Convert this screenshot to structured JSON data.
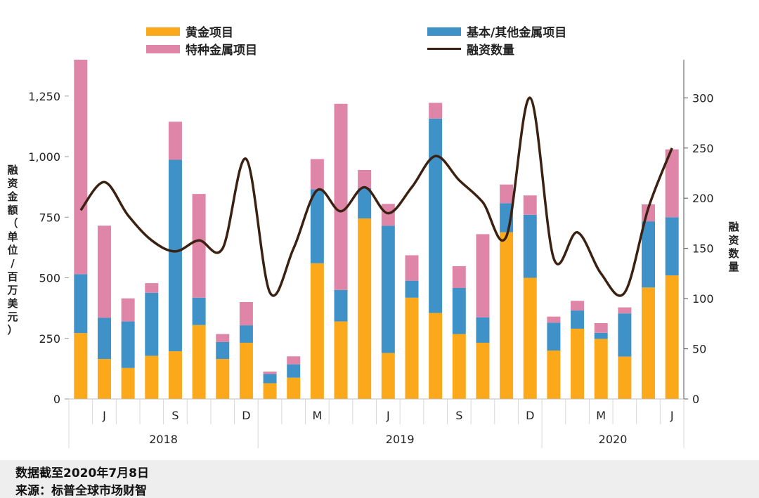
{
  "legend": {
    "gold": "黄金项目",
    "special": "特种金属项目",
    "base": "基本/其他金属项目",
    "count": "融资数量"
  },
  "left_axis_label": "融资金额（单位/百万美元）",
  "right_axis_label": "融资数量",
  "footer": {
    "date_note": "数据截至2020年7月8日",
    "source": "来源：标普全球市场财智"
  },
  "colors": {
    "gold": "#FBA81A",
    "base": "#3E92C8",
    "special": "#DF85A8",
    "count_line": "#3B2112"
  },
  "chart_data": {
    "type": "bar",
    "categories": [
      "2018-05",
      "2018-06",
      "2018-07",
      "2018-08",
      "2018-09",
      "2018-10",
      "2018-11",
      "2018-12",
      "2019-01",
      "2019-02",
      "2019-03",
      "2019-04",
      "2019-05",
      "2019-06",
      "2019-07",
      "2019-08",
      "2019-09",
      "2019-10",
      "2019-11",
      "2019-12",
      "2020-01",
      "2020-02",
      "2020-03",
      "2020-04",
      "2020-05",
      "2020-06"
    ],
    "tick_labels": [
      "",
      "J",
      "",
      "",
      "S",
      "",
      "",
      "D",
      "",
      "",
      "M",
      "",
      "",
      "J",
      "",
      "",
      "S",
      "",
      "",
      "D",
      "",
      "",
      "M",
      "",
      "",
      "J"
    ],
    "year_labels": [
      {
        "label": "2018",
        "first_index": 0,
        "last_index": 7
      },
      {
        "label": "2019",
        "first_index": 8,
        "last_index": 19
      },
      {
        "label": "2020",
        "first_index": 20,
        "last_index": 25
      }
    ],
    "stacked": true,
    "series": [
      {
        "name": "黄金项目",
        "color": "#FBA81A",
        "values": [
          272,
          165,
          128,
          178,
          197,
          305,
          165,
          232,
          65,
          88,
          560,
          320,
          745,
          190,
          418,
          355,
          268,
          232,
          688,
          500,
          200,
          290,
          248,
          175,
          460,
          510
        ]
      },
      {
        "name": "基本/其他金属项目",
        "color": "#3E92C8",
        "values": [
          243,
          170,
          192,
          260,
          790,
          113,
          70,
          72,
          38,
          55,
          305,
          130,
          125,
          525,
          70,
          802,
          190,
          105,
          120,
          260,
          115,
          75,
          25,
          178,
          273,
          240
        ]
      },
      {
        "name": "特种金属项目",
        "color": "#DF85A8",
        "values": [
          885,
          380,
          95,
          40,
          157,
          428,
          33,
          96,
          10,
          33,
          125,
          768,
          75,
          90,
          105,
          65,
          90,
          343,
          77,
          80,
          25,
          40,
          40,
          25,
          70,
          280
        ]
      }
    ],
    "line_series": {
      "name": "融资数量",
      "axis": "right",
      "values": [
        188,
        216,
        183,
        158,
        147,
        158,
        150,
        239,
        106,
        150,
        208,
        187,
        211,
        185,
        211,
        242,
        218,
        196,
        162,
        300,
        140,
        166,
        125,
        106,
        190,
        250
      ]
    },
    "ylim_left": [
      0,
      1400
    ],
    "yticks_left": [
      0,
      250,
      500,
      750,
      1000,
      1250
    ],
    "ytick_labels_left": [
      "0",
      "250",
      "500",
      "750",
      "1,000",
      "1,250"
    ],
    "ylim_right": [
      0,
      338
    ],
    "yticks_right": [
      0,
      50,
      100,
      150,
      200,
      250,
      300
    ],
    "ytick_labels_right": [
      "0",
      "50",
      "100",
      "150",
      "200",
      "250",
      "300"
    ],
    "ylabel": "融资金额（单位/百万美元）",
    "ylabel_right": "融资数量",
    "legend_position": "top",
    "grid": false
  }
}
